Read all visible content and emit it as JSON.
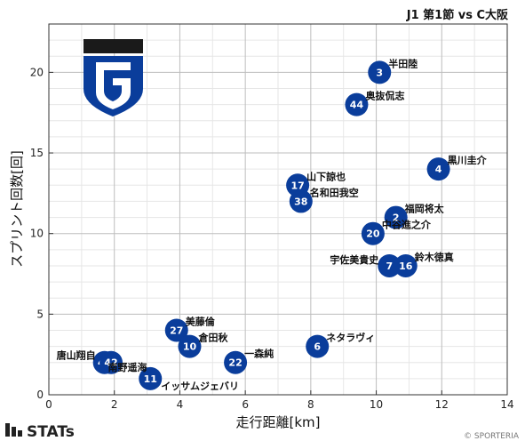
{
  "chart_data": {
    "type": "scatter",
    "title": "J1 第1節 vs C大阪",
    "xlabel": "走行距離[km]",
    "ylabel": "スプリント回数[回]",
    "xlim": [
      0,
      14
    ],
    "ylim": [
      0,
      23
    ],
    "xticks": [
      0,
      2,
      4,
      6,
      8,
      10,
      12,
      14
    ],
    "yticks": [
      0,
      5,
      10,
      15,
      20
    ],
    "grid": true,
    "marker_color": "#0a3d9b",
    "points": [
      {
        "number": "3",
        "name": "半田陸",
        "x": 10.1,
        "y": 20
      },
      {
        "number": "44",
        "name": "奥抜侃志",
        "x": 9.4,
        "y": 18
      },
      {
        "number": "4",
        "name": "黒川圭介",
        "x": 11.9,
        "y": 14
      },
      {
        "number": "17",
        "name": "山下諒也",
        "x": 7.6,
        "y": 13
      },
      {
        "number": "38",
        "name": "名和田我空",
        "x": 7.7,
        "y": 12
      },
      {
        "number": "2",
        "name": "福岡将太",
        "x": 10.6,
        "y": 11
      },
      {
        "number": "20",
        "name": "中谷進之介",
        "x": 9.9,
        "y": 10
      },
      {
        "number": "7",
        "name": "宇佐美貴史",
        "x": 10.4,
        "y": 8
      },
      {
        "number": "16",
        "name": "鈴木徳真",
        "x": 10.9,
        "y": 8
      },
      {
        "number": "27",
        "name": "美藤倫",
        "x": 3.9,
        "y": 4
      },
      {
        "number": "10",
        "name": "倉田秋",
        "x": 4.3,
        "y": 3
      },
      {
        "number": "6",
        "name": "ネタラヴィ",
        "x": 8.2,
        "y": 3
      },
      {
        "number": "22",
        "name": "一森純",
        "x": 5.7,
        "y": 2
      },
      {
        "number": "41",
        "name": "唐山翔自",
        "x": 1.7,
        "y": 2
      },
      {
        "number": "42",
        "name": "",
        "x": 1.9,
        "y": 2
      },
      {
        "number": "11",
        "name": "イッサムジェバリ",
        "x": 3.1,
        "y": 1
      },
      {
        "number": "",
        "name": "南野遥海",
        "x": 2.4,
        "y": 1.5
      }
    ]
  },
  "branding": {
    "stats_logo_text": "STATs",
    "credit": "© SPORTERIA",
    "team_emblem": "gamba-osaka-g-emblem",
    "emblem_colors": [
      "#1a1a1a",
      "#0a3d9b",
      "#ffffff"
    ]
  }
}
